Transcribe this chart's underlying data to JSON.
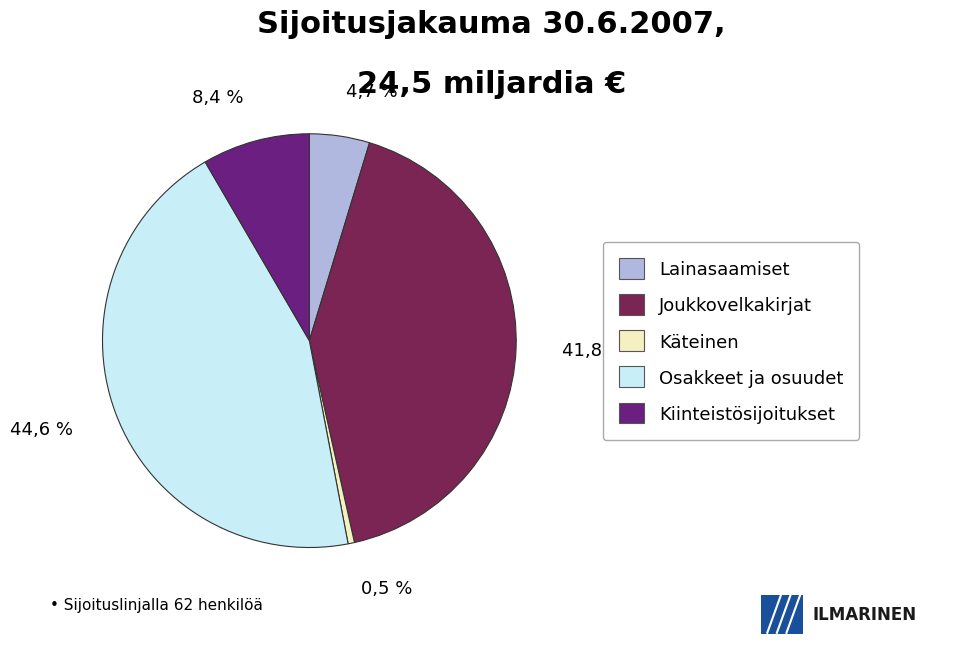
{
  "title_line1": "Sijoitusjakauma 30.6.2007,",
  "title_line2": "24,5 miljardia €",
  "slices": [
    4.7,
    41.8,
    0.5,
    44.6,
    8.4
  ],
  "labels": [
    "Lainasaamiset",
    "Joukkovelkakirjat",
    "Käteinen",
    "Osakkeet ja osuudet",
    "Kiinteistösijoitukset"
  ],
  "colors": [
    "#b0b8e0",
    "#7b2555",
    "#f5f0c0",
    "#c8eff8",
    "#6b1f80"
  ],
  "pct_labels": [
    "4,7 %",
    "41,8 %",
    "0,5 %",
    "44,6 %",
    "8,4 %"
  ],
  "footer": "• Sijoituslinjalla 62 henkilöä",
  "background_color": "#ffffff",
  "title_fontsize": 22,
  "label_fontsize": 13,
  "legend_fontsize": 13,
  "ilmarinen_text": "ILMARINEN",
  "ilmarinen_color": "#1a1a1a",
  "logo_box_color": "#1a4f9c"
}
